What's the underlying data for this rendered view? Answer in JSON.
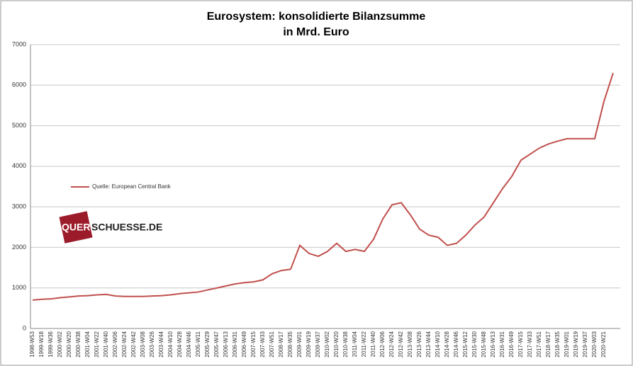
{
  "chart_data": {
    "type": "line",
    "title": [
      "Eurosystem: konsolidierte Bilanzsumme",
      "in Mrd. Euro"
    ],
    "categories": [
      "1998-W53",
      "1999-W18",
      "1999-W36",
      "2000-W02",
      "2000-W20",
      "2000-W38",
      "2001-W04",
      "2001-W22",
      "2001-W40",
      "2002-W06",
      "2002-W24",
      "2002-W42",
      "2003-W08",
      "2003-W26",
      "2003-W44",
      "2004-W10",
      "2004-W28",
      "2004-W46",
      "2005-W11",
      "2005-W29",
      "2005-W47",
      "2006-W13",
      "2006-W31",
      "2006-W49",
      "2007-W15",
      "2007-W33",
      "2007-W51",
      "2008-W17",
      "2008-W35",
      "2009-W01",
      "2009-W19",
      "2009-W37",
      "2010-W02",
      "2010-W20",
      "2010-W38",
      "2011-W04",
      "2011-W22",
      "2011-W40",
      "2012-W06",
      "2012-W24",
      "2012-W42",
      "2013-W08",
      "2013-W26",
      "2013-W44",
      "2014-W10",
      "2014-W28",
      "2014-W46",
      "2015-W12",
      "2015-W30",
      "2015-W48",
      "2016-W13",
      "2016-W31",
      "2016-W49",
      "2017-W15",
      "2017-W33",
      "2017-W51",
      "2018-W17",
      "2018-W35",
      "2019-W01",
      "2019-W19",
      "2019-W37",
      "2020-W03",
      "2020-W21",
      null
    ],
    "series": [
      {
        "name": "Quelle: European Central Bank",
        "color": "#c0504d",
        "values": [
          700,
          720,
          730,
          760,
          780,
          800,
          810,
          830,
          840,
          800,
          790,
          790,
          790,
          800,
          810,
          830,
          860,
          880,
          900,
          950,
          1000,
          1050,
          1100,
          1130,
          1150,
          1200,
          1350,
          1430,
          1460,
          2050,
          1850,
          1780,
          1900,
          2100,
          1900,
          1950,
          1900,
          2200,
          2700,
          3050,
          3100,
          2800,
          2450,
          2300,
          2250,
          2050,
          2100,
          2300,
          2550,
          2750,
          3100,
          3450,
          3750,
          4150,
          4300,
          4450,
          4550,
          4620,
          4680,
          4680,
          4680,
          4680,
          5600,
          6300
        ]
      }
    ],
    "ylim": [
      0,
      7000
    ],
    "yticks": [
      0,
      1000,
      2000,
      3000,
      4000,
      5000,
      6000,
      7000
    ],
    "grid": true,
    "watermark": [
      "QUER",
      "SCHUESSE.DE"
    ]
  }
}
